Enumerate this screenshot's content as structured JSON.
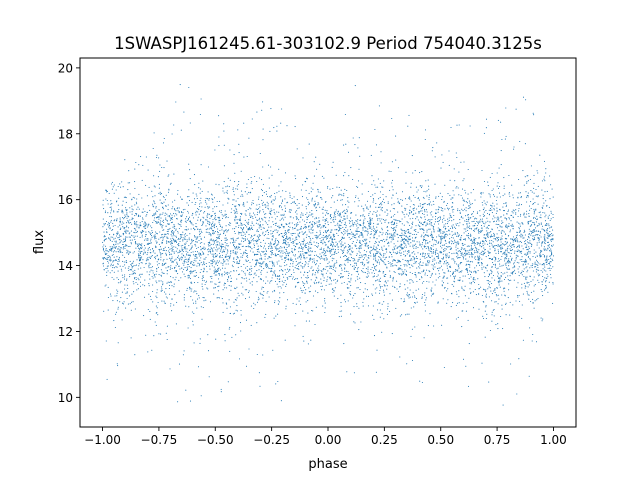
{
  "chart_data": {
    "type": "scatter",
    "title": "1SWASPJ161245.61-303102.9 Period 754040.3125s",
    "xlabel": "phase",
    "ylabel": "flux",
    "xlim": [
      -1.1,
      1.1
    ],
    "ylim": [
      9.1,
      20.3
    ],
    "xticks": [
      -1.0,
      -0.75,
      -0.5,
      -0.25,
      0.0,
      0.25,
      0.5,
      0.75,
      1.0
    ],
    "xtick_labels": [
      "−1.00",
      "−0.75",
      "−0.50",
      "−0.25",
      "0.00",
      "0.25",
      "0.50",
      "0.75",
      "1.00"
    ],
    "yticks": [
      10,
      12,
      14,
      16,
      18,
      20
    ],
    "ytick_labels": [
      "10",
      "12",
      "14",
      "16",
      "18",
      "20"
    ],
    "grid": false,
    "legend": "none",
    "point_color": "#1f77b4",
    "series": [
      {
        "phase_range": [
          -1.0,
          1.0
        ],
        "central_flux": 14.7,
        "typical_flux_range": [
          13.0,
          16.5
        ],
        "full_flux_range": [
          9.6,
          19.7
        ],
        "summary": [
          {
            "x": -1.0,
            "y_min": 10.4,
            "y_median": 14.7,
            "y_max": 16.2
          },
          {
            "x": -0.9,
            "y_min": 10.2,
            "y_median": 14.7,
            "y_max": 17.3
          },
          {
            "x": -0.8,
            "y_min": 10.8,
            "y_median": 14.7,
            "y_max": 18.0
          },
          {
            "x": -0.7,
            "y_min": 9.8,
            "y_median": 14.6,
            "y_max": 19.5
          },
          {
            "x": -0.6,
            "y_min": 9.7,
            "y_median": 14.6,
            "y_max": 19.6
          },
          {
            "x": -0.5,
            "y_min": 9.7,
            "y_median": 14.6,
            "y_max": 18.8
          },
          {
            "x": -0.4,
            "y_min": 10.4,
            "y_median": 14.7,
            "y_max": 19.5
          },
          {
            "x": -0.3,
            "y_min": 10.2,
            "y_median": 14.7,
            "y_max": 19.2
          },
          {
            "x": -0.2,
            "y_min": 9.7,
            "y_median": 14.6,
            "y_max": 19.6
          },
          {
            "x": -0.1,
            "y_min": 11.2,
            "y_median": 14.7,
            "y_max": 18.2
          },
          {
            "x": 0.0,
            "y_min": 11.9,
            "y_median": 14.7,
            "y_max": 16.5
          },
          {
            "x": 0.1,
            "y_min": 10.5,
            "y_median": 14.7,
            "y_max": 19.6
          },
          {
            "x": 0.2,
            "y_min": 10.4,
            "y_median": 14.7,
            "y_max": 19.3
          },
          {
            "x": 0.3,
            "y_min": 10.5,
            "y_median": 14.7,
            "y_max": 18.6
          },
          {
            "x": 0.4,
            "y_min": 9.8,
            "y_median": 14.6,
            "y_max": 19.6
          },
          {
            "x": 0.5,
            "y_min": 9.9,
            "y_median": 14.6,
            "y_max": 19.2
          },
          {
            "x": 0.6,
            "y_min": 9.7,
            "y_median": 14.6,
            "y_max": 18.2
          },
          {
            "x": 0.7,
            "y_min": 9.8,
            "y_median": 14.6,
            "y_max": 19.0
          },
          {
            "x": 0.8,
            "y_min": 9.6,
            "y_median": 14.6,
            "y_max": 19.6
          },
          {
            "x": 0.9,
            "y_min": 10.5,
            "y_median": 14.7,
            "y_max": 19.1
          },
          {
            "x": 1.0,
            "y_min": 12.5,
            "y_median": 14.7,
            "y_max": 16.4
          }
        ]
      }
    ]
  }
}
